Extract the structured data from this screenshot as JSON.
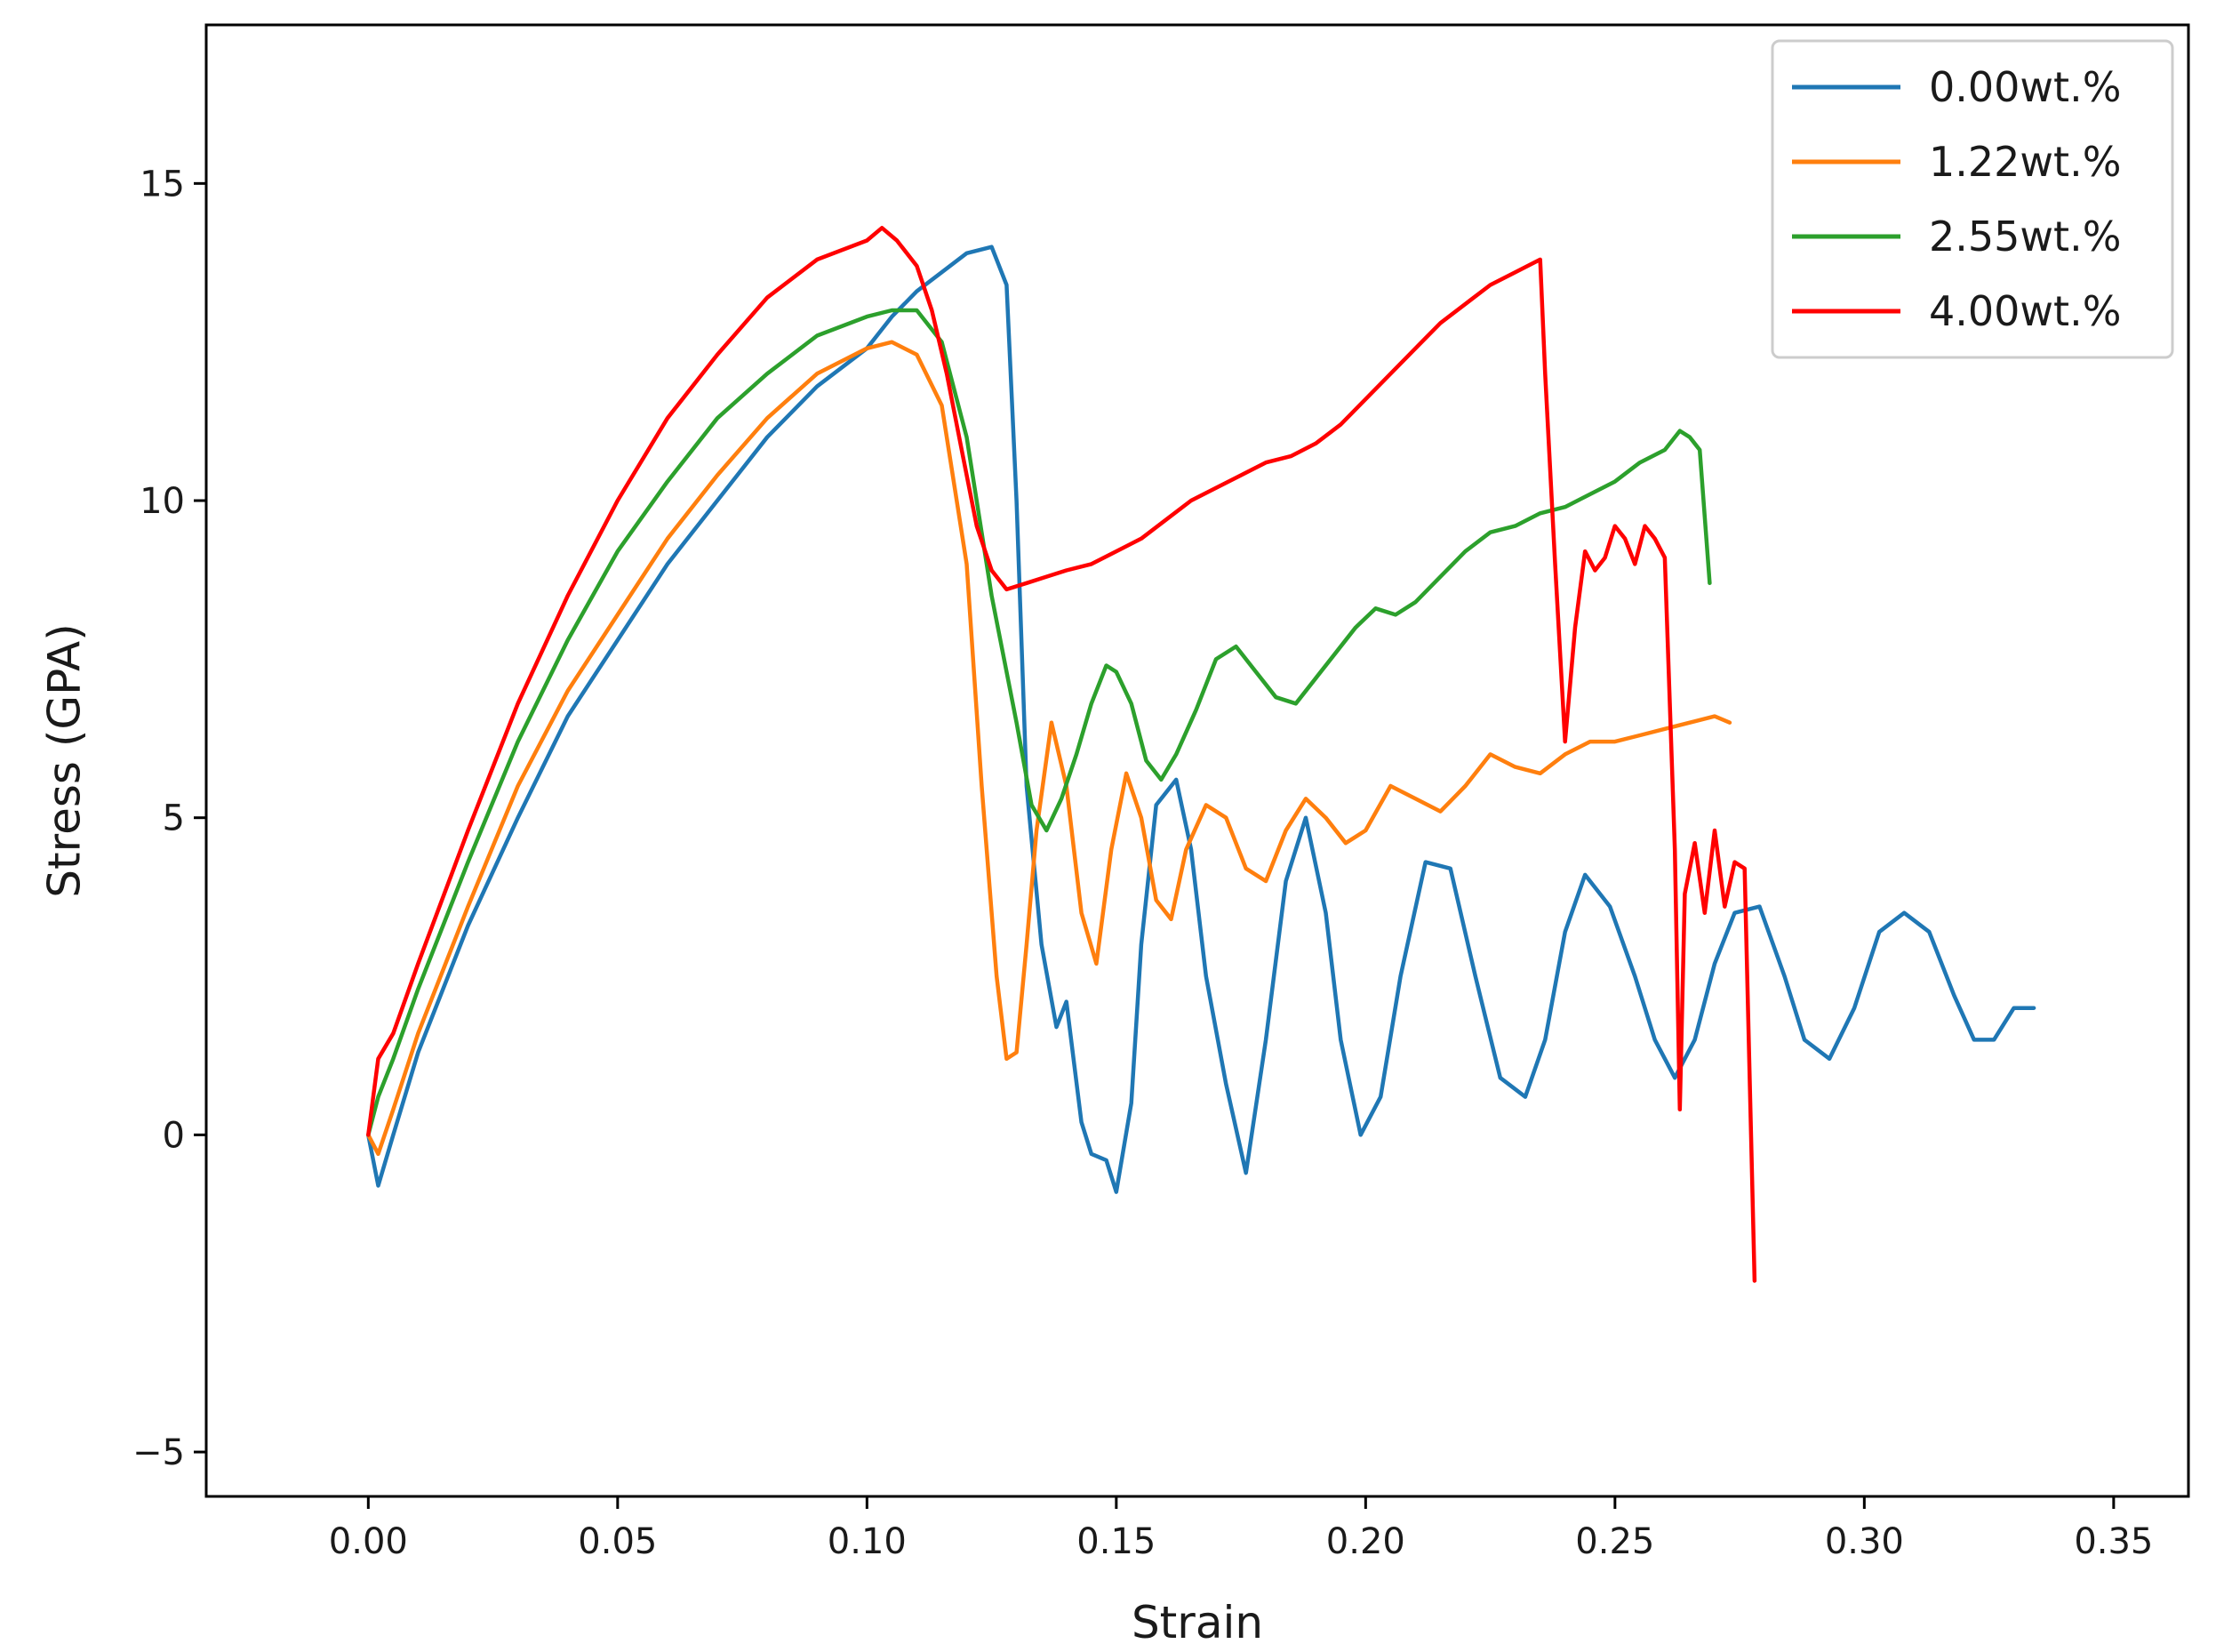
{
  "chart_data": {
    "type": "line",
    "title": "",
    "xlabel": "Strain",
    "ylabel": "Stress (GPA)",
    "xlim": [
      -0.0325,
      0.365
    ],
    "ylim": [
      -5.7,
      17.5
    ],
    "xticks": [
      0.0,
      0.05,
      0.1,
      0.15,
      0.2,
      0.25,
      0.3,
      0.35
    ],
    "xtick_labels": [
      "0.00",
      "0.05",
      "0.10",
      "0.15",
      "0.20",
      "0.25",
      "0.30",
      "0.35"
    ],
    "yticks": [
      -5,
      0,
      5,
      10,
      15
    ],
    "ytick_labels": [
      "−5",
      "0",
      "5",
      "10",
      "15"
    ],
    "grid": false,
    "legend_position": "top-right",
    "series": [
      {
        "name": "0.00wt.%",
        "color": "#1f77b4",
        "x": [
          0.0,
          0.002,
          0.005,
          0.01,
          0.02,
          0.03,
          0.04,
          0.05,
          0.06,
          0.07,
          0.08,
          0.09,
          0.1,
          0.105,
          0.11,
          0.115,
          0.12,
          0.125,
          0.128,
          0.13,
          0.132,
          0.135,
          0.138,
          0.14,
          0.143,
          0.145,
          0.148,
          0.15,
          0.153,
          0.155,
          0.158,
          0.162,
          0.165,
          0.168,
          0.172,
          0.176,
          0.18,
          0.184,
          0.188,
          0.192,
          0.195,
          0.199,
          0.203,
          0.207,
          0.212,
          0.217,
          0.222,
          0.227,
          0.232,
          0.236,
          0.24,
          0.244,
          0.249,
          0.254,
          0.258,
          0.262,
          0.266,
          0.27,
          0.274,
          0.279,
          0.284,
          0.288,
          0.293,
          0.298,
          0.303,
          0.308,
          0.313,
          0.318,
          0.322,
          0.326,
          0.33,
          0.334
        ],
        "y": [
          0.0,
          -0.8,
          0.0,
          1.3,
          3.3,
          5.0,
          6.6,
          7.8,
          9.0,
          10.0,
          11.0,
          11.8,
          12.4,
          12.9,
          13.3,
          13.6,
          13.9,
          14.0,
          13.4,
          10.0,
          5.5,
          3.0,
          1.7,
          2.1,
          0.2,
          -0.3,
          -0.4,
          -0.9,
          0.5,
          3.0,
          5.2,
          5.6,
          4.5,
          2.5,
          0.8,
          -0.6,
          1.5,
          4.0,
          5.0,
          3.5,
          1.5,
          0.0,
          0.6,
          2.5,
          4.3,
          4.2,
          2.5,
          0.9,
          0.6,
          1.5,
          3.2,
          4.1,
          3.6,
          2.5,
          1.5,
          0.9,
          1.5,
          2.7,
          3.5,
          3.6,
          2.5,
          1.5,
          1.2,
          2.0,
          3.2,
          3.5,
          3.2,
          2.2,
          1.5,
          1.5,
          2.0,
          2.0
        ]
      },
      {
        "name": "1.22wt.%",
        "color": "#ff7f0e",
        "x": [
          0.0,
          0.002,
          0.005,
          0.01,
          0.02,
          0.03,
          0.04,
          0.05,
          0.06,
          0.07,
          0.08,
          0.09,
          0.1,
          0.105,
          0.11,
          0.115,
          0.12,
          0.123,
          0.126,
          0.128,
          0.13,
          0.132,
          0.134,
          0.137,
          0.14,
          0.143,
          0.146,
          0.149,
          0.152,
          0.155,
          0.158,
          0.161,
          0.164,
          0.168,
          0.172,
          0.176,
          0.18,
          0.184,
          0.188,
          0.192,
          0.196,
          0.2,
          0.205,
          0.21,
          0.215,
          0.22,
          0.225,
          0.23,
          0.235,
          0.24,
          0.245,
          0.25,
          0.255,
          0.26,
          0.265,
          0.27,
          0.273
        ],
        "y": [
          0.0,
          -0.3,
          0.4,
          1.6,
          3.6,
          5.5,
          7.0,
          8.2,
          9.4,
          10.4,
          11.3,
          12.0,
          12.4,
          12.5,
          12.3,
          11.5,
          9.0,
          5.5,
          2.5,
          1.2,
          1.3,
          3.0,
          4.8,
          6.5,
          5.5,
          3.5,
          2.7,
          4.5,
          5.7,
          5.0,
          3.7,
          3.4,
          4.5,
          5.2,
          5.0,
          4.2,
          4.0,
          4.8,
          5.3,
          5.0,
          4.6,
          4.8,
          5.5,
          5.3,
          5.1,
          5.5,
          6.0,
          5.8,
          5.7,
          6.0,
          6.2,
          6.2,
          6.3,
          6.4,
          6.5,
          6.6,
          6.5
        ]
      },
      {
        "name": "2.55wt.%",
        "color": "#2ca02c",
        "x": [
          0.0,
          0.002,
          0.005,
          0.01,
          0.02,
          0.03,
          0.04,
          0.05,
          0.06,
          0.07,
          0.08,
          0.09,
          0.1,
          0.105,
          0.11,
          0.115,
          0.12,
          0.125,
          0.13,
          0.133,
          0.136,
          0.139,
          0.142,
          0.145,
          0.148,
          0.15,
          0.153,
          0.156,
          0.159,
          0.162,
          0.166,
          0.17,
          0.174,
          0.178,
          0.182,
          0.186,
          0.19,
          0.194,
          0.198,
          0.202,
          0.206,
          0.21,
          0.215,
          0.22,
          0.225,
          0.23,
          0.235,
          0.24,
          0.245,
          0.25,
          0.255,
          0.26,
          0.263,
          0.265,
          0.267,
          0.269
        ],
        "y": [
          0.0,
          0.6,
          1.2,
          2.3,
          4.3,
          6.2,
          7.8,
          9.2,
          10.3,
          11.3,
          12.0,
          12.6,
          12.9,
          13.0,
          13.0,
          12.5,
          11.0,
          8.5,
          6.5,
          5.2,
          4.8,
          5.3,
          6.0,
          6.8,
          7.4,
          7.3,
          6.8,
          5.9,
          5.6,
          6.0,
          6.7,
          7.5,
          7.7,
          7.3,
          6.9,
          6.8,
          7.2,
          7.6,
          8.0,
          8.3,
          8.2,
          8.4,
          8.8,
          9.2,
          9.5,
          9.6,
          9.8,
          9.9,
          10.1,
          10.3,
          10.6,
          10.8,
          11.1,
          11.0,
          10.8,
          8.7
        ]
      },
      {
        "name": "4.00wt.%",
        "color": "#ff0000",
        "x": [
          0.0,
          0.002,
          0.005,
          0.01,
          0.02,
          0.03,
          0.04,
          0.05,
          0.06,
          0.07,
          0.08,
          0.09,
          0.1,
          0.103,
          0.106,
          0.11,
          0.113,
          0.116,
          0.119,
          0.122,
          0.125,
          0.128,
          0.132,
          0.136,
          0.14,
          0.145,
          0.15,
          0.155,
          0.16,
          0.165,
          0.17,
          0.175,
          0.18,
          0.185,
          0.19,
          0.195,
          0.2,
          0.205,
          0.21,
          0.215,
          0.22,
          0.225,
          0.23,
          0.235,
          0.236,
          0.238,
          0.24,
          0.242,
          0.244,
          0.246,
          0.248,
          0.25,
          0.252,
          0.254,
          0.256,
          0.258,
          0.26,
          0.262,
          0.263,
          0.264,
          0.266,
          0.268,
          0.27,
          0.272,
          0.274,
          0.276,
          0.278
        ],
        "y": [
          0.0,
          1.2,
          1.6,
          2.7,
          4.8,
          6.8,
          8.5,
          10.0,
          11.3,
          12.3,
          13.2,
          13.8,
          14.1,
          14.3,
          14.1,
          13.7,
          13.0,
          12.0,
          10.8,
          9.6,
          8.9,
          8.6,
          8.7,
          8.8,
          8.9,
          9.0,
          9.2,
          9.4,
          9.7,
          10.0,
          10.2,
          10.4,
          10.6,
          10.7,
          10.9,
          11.2,
          11.6,
          12.0,
          12.4,
          12.8,
          13.1,
          13.4,
          13.6,
          13.8,
          12.0,
          9.0,
          6.2,
          8.0,
          9.2,
          8.9,
          9.1,
          9.6,
          9.4,
          9.0,
          9.6,
          9.4,
          9.1,
          4.5,
          0.4,
          3.8,
          4.6,
          3.5,
          4.8,
          3.6,
          4.3,
          4.2,
          -2.3
        ]
      }
    ]
  }
}
